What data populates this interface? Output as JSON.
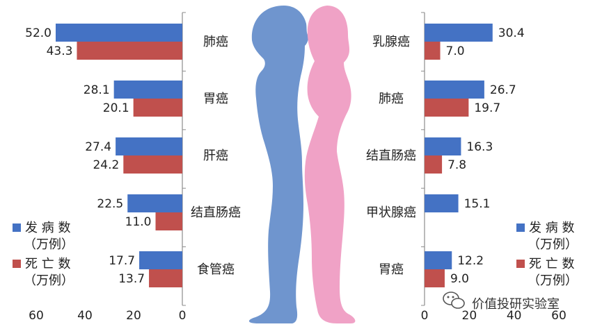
{
  "colors": {
    "incidence": "#4472C4",
    "death": "#C0504D",
    "male": "#6F95CE",
    "female": "#F0A2C6",
    "axis": "#8c8c8c"
  },
  "watermark": "价值投研实验室",
  "chart_data": [
    {
      "type": "bar",
      "orientation": "horizontal",
      "direction": "right-to-left",
      "side": "male",
      "categories": [
        "肺癌",
        "胃癌",
        "肝癌",
        "结直肠癌",
        "食管癌"
      ],
      "series": [
        {
          "name": "发病数（万例）",
          "legend_line1": "发 病 数",
          "legend_line2": "（万例）",
          "values": [
            52.0,
            28.1,
            27.4,
            22.5,
            17.7
          ],
          "labels": [
            "52.0",
            "28.1",
            "27.4",
            "22.5",
            "17.7"
          ]
        },
        {
          "name": "死亡数（万例）",
          "legend_line1": "死 亡 数",
          "legend_line2": "（万例）",
          "values": [
            43.3,
            20.1,
            24.2,
            11.0,
            13.7
          ],
          "labels": [
            "43.3",
            "20.1",
            "24.2",
            "11.0",
            "13.7"
          ]
        }
      ],
      "xlim": [
        0,
        60
      ],
      "xticks": [
        "60",
        "40",
        "20",
        "0"
      ],
      "legend_position": "bottom-left",
      "grid": false
    },
    {
      "type": "bar",
      "orientation": "horizontal",
      "direction": "left-to-right",
      "side": "female",
      "categories": [
        "乳腺癌",
        "肺癌",
        "结直肠癌",
        "甲状腺癌",
        "胃癌"
      ],
      "series": [
        {
          "name": "发病数（万例）",
          "legend_line1": "发 病 数",
          "legend_line2": "（万例）",
          "values": [
            30.4,
            26.7,
            16.3,
            15.1,
            12.2
          ],
          "labels": [
            "30.4",
            "26.7",
            "16.3",
            "15.1",
            "12.2"
          ]
        },
        {
          "name": "死亡数（万例）",
          "legend_line1": "死 亡 数",
          "legend_line2": "（万例）",
          "values": [
            7.0,
            19.7,
            7.8,
            null,
            9.0
          ],
          "labels": [
            "7.0",
            "19.7",
            "7.8",
            "",
            "9.0"
          ]
        }
      ],
      "xlim": [
        0,
        60
      ],
      "xticks": [
        "0",
        "20",
        "40",
        "60"
      ],
      "legend_position": "bottom-right",
      "grid": false
    }
  ]
}
